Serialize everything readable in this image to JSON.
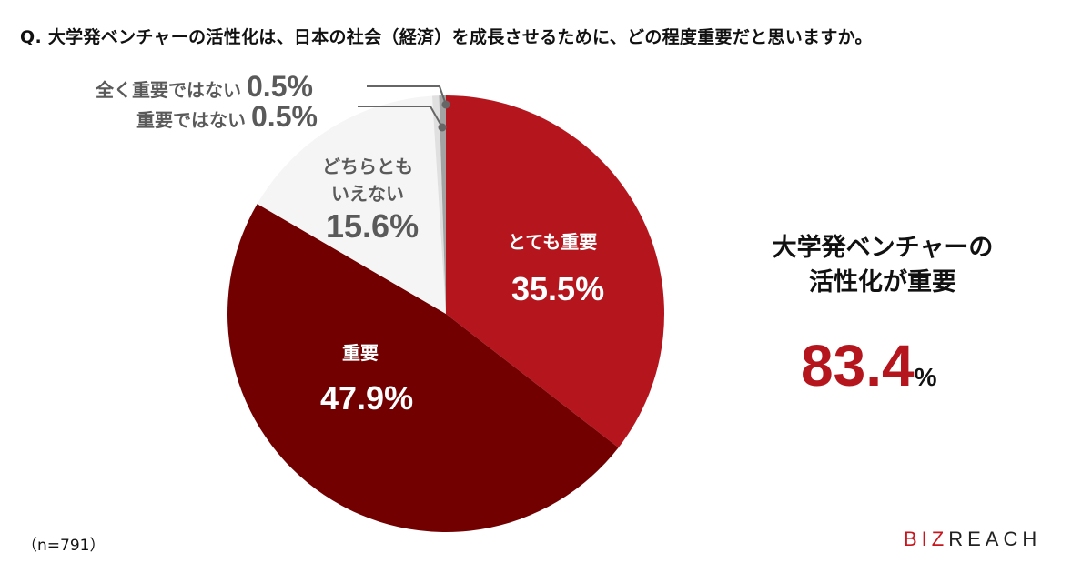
{
  "title": "Q. 大学発ベンチャーの活性化は、日本の社会（経済）を成長させるために、どの程度重要だと思いますか。",
  "chart_data": {
    "type": "pie",
    "title": "Q. 大学発ベンチャーの活性化は、日本の社会（経済）を成長させるために、どの程度重要だと思いますか。",
    "categories": [
      "とても重要",
      "重要",
      "どちらともいえない",
      "重要ではない",
      "全く重要ではない"
    ],
    "values": [
      35.5,
      47.9,
      15.6,
      0.5,
      0.5
    ],
    "colors": [
      "#b5161e",
      "#720000",
      "#f5f5f5",
      "#e0e0e0",
      "#a3a3a3"
    ],
    "start_angle_deg": 0,
    "direction": "clockwise",
    "unit": "%",
    "sample_size": "n=791",
    "legend": "none (direct labels)"
  },
  "labels": {
    "very_important": {
      "text": "とても重要",
      "value": "35.5%"
    },
    "important": {
      "text": "重要",
      "value": "47.9%"
    },
    "neither": {
      "line1": "どちらとも",
      "line2": "いえない",
      "value": "15.6%"
    },
    "not_important": {
      "text": "重要ではない",
      "value": "0.5%"
    },
    "not_at_all": {
      "text": "全く重要ではない",
      "value": "0.5%"
    }
  },
  "summary": {
    "line1": "大学発ベンチャーの",
    "line2": "活性化が重要",
    "value": "83.4",
    "unit": "%"
  },
  "footer": {
    "sample": "（n=791）",
    "logo_biz": "BIZ",
    "logo_reach": "REAC",
    "logo_mark": "H"
  },
  "colors": {
    "accent": "#b5161e",
    "dark_red": "#720000",
    "gray_text": "#5a5a5a"
  }
}
